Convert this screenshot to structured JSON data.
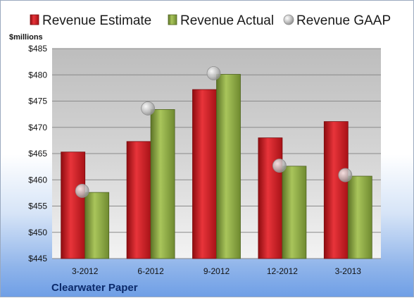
{
  "chart_data": {
    "type": "bar",
    "title": "",
    "ylabel": "$millions",
    "xlabel": "",
    "company": "Clearwater Paper",
    "categories": [
      "3-2012",
      "6-2012",
      "9-2012",
      "12-2012",
      "3-2013"
    ],
    "ylim": [
      445,
      485
    ],
    "yticks": [
      445,
      450,
      455,
      460,
      465,
      470,
      475,
      480,
      485
    ],
    "ytick_labels": [
      "$445",
      "$450",
      "$455",
      "$460",
      "$465",
      "$470",
      "$475",
      "$480",
      "$485"
    ],
    "grid": true,
    "legend_position": "top",
    "series": [
      {
        "name": "Revenue Estimate",
        "kind": "bar",
        "color": "#c8191e",
        "values": [
          465.3,
          467.3,
          477.2,
          468.0,
          471.1
        ]
      },
      {
        "name": "Revenue Actual",
        "kind": "bar",
        "color": "#8ea845",
        "values": [
          457.6,
          473.4,
          480.1,
          462.6,
          460.7
        ]
      },
      {
        "name": "Revenue GAAP",
        "kind": "marker",
        "color": "#b9b9b9",
        "values": [
          457.9,
          473.6,
          480.3,
          462.7,
          460.9
        ]
      }
    ]
  }
}
